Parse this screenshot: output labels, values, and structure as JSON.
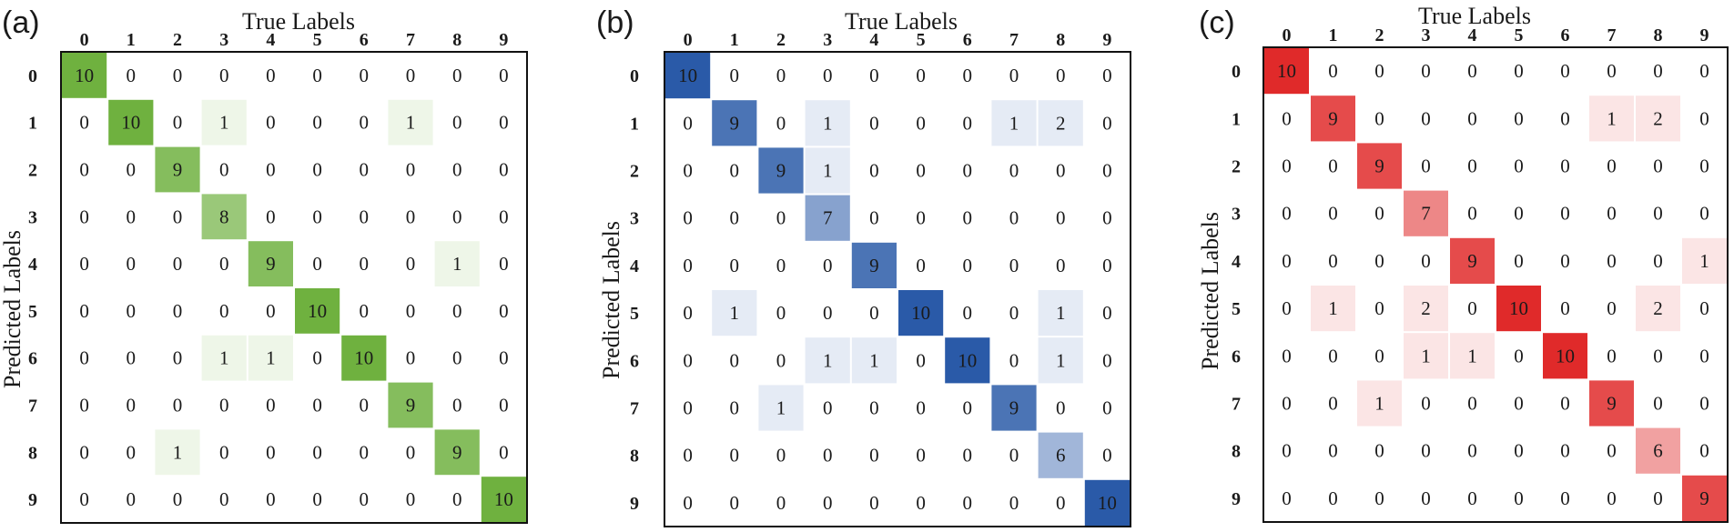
{
  "chart_data": [
    {
      "type": "heatmap",
      "panel_label": "(a)",
      "xlabel": "True Labels",
      "ylabel": "Predicted Labels",
      "x_categories": [
        "0",
        "1",
        "2",
        "3",
        "4",
        "5",
        "6",
        "7",
        "8",
        "9"
      ],
      "y_categories": [
        "0",
        "1",
        "2",
        "3",
        "4",
        "5",
        "6",
        "7",
        "8",
        "9"
      ],
      "color": "#6fb13f",
      "values": [
        [
          10,
          0,
          0,
          0,
          0,
          0,
          0,
          0,
          0,
          0
        ],
        [
          0,
          10,
          0,
          1,
          0,
          0,
          0,
          1,
          0,
          0
        ],
        [
          0,
          0,
          9,
          0,
          0,
          0,
          0,
          0,
          0,
          0
        ],
        [
          0,
          0,
          0,
          8,
          0,
          0,
          0,
          0,
          0,
          0
        ],
        [
          0,
          0,
          0,
          0,
          9,
          0,
          0,
          0,
          1,
          0
        ],
        [
          0,
          0,
          0,
          0,
          0,
          10,
          0,
          0,
          0,
          0
        ],
        [
          0,
          0,
          0,
          1,
          1,
          0,
          10,
          0,
          0,
          0
        ],
        [
          0,
          0,
          0,
          0,
          0,
          0,
          0,
          9,
          0,
          0
        ],
        [
          0,
          0,
          1,
          0,
          0,
          0,
          0,
          0,
          9,
          0
        ],
        [
          0,
          0,
          0,
          0,
          0,
          0,
          0,
          0,
          0,
          10
        ]
      ]
    },
    {
      "type": "heatmap",
      "panel_label": "(b)",
      "xlabel": "True Labels",
      "ylabel": "Predicted Labels",
      "x_categories": [
        "0",
        "1",
        "2",
        "3",
        "4",
        "5",
        "6",
        "7",
        "8",
        "9"
      ],
      "y_categories": [
        "0",
        "1",
        "2",
        "3",
        "4",
        "5",
        "6",
        "7",
        "8",
        "9"
      ],
      "color": "#2a5aa8",
      "values": [
        [
          10,
          0,
          0,
          0,
          0,
          0,
          0,
          0,
          0,
          0
        ],
        [
          0,
          9,
          0,
          1,
          0,
          0,
          0,
          1,
          2,
          0
        ],
        [
          0,
          0,
          9,
          1,
          0,
          0,
          0,
          0,
          0,
          0
        ],
        [
          0,
          0,
          0,
          7,
          0,
          0,
          0,
          0,
          0,
          0
        ],
        [
          0,
          0,
          0,
          0,
          9,
          0,
          0,
          0,
          0,
          0
        ],
        [
          0,
          1,
          0,
          0,
          0,
          10,
          0,
          0,
          1,
          0
        ],
        [
          0,
          0,
          0,
          1,
          1,
          0,
          10,
          0,
          1,
          0
        ],
        [
          0,
          0,
          1,
          0,
          0,
          0,
          0,
          9,
          0,
          0
        ],
        [
          0,
          0,
          0,
          0,
          0,
          0,
          0,
          0,
          6,
          0
        ],
        [
          0,
          0,
          0,
          0,
          0,
          0,
          0,
          0,
          0,
          10
        ]
      ]
    },
    {
      "type": "heatmap",
      "panel_label": "(c)",
      "xlabel": "True Labels",
      "ylabel": "Predicted Labels",
      "x_categories": [
        "0",
        "1",
        "2",
        "3",
        "4",
        "5",
        "6",
        "7",
        "8",
        "9"
      ],
      "y_categories": [
        "0",
        "1",
        "2",
        "3",
        "4",
        "5",
        "6",
        "7",
        "8",
        "9"
      ],
      "color": "#e02a2a",
      "values": [
        [
          10,
          0,
          0,
          0,
          0,
          0,
          0,
          0,
          0,
          0
        ],
        [
          0,
          9,
          0,
          0,
          0,
          0,
          0,
          1,
          2,
          0
        ],
        [
          0,
          0,
          9,
          0,
          0,
          0,
          0,
          0,
          0,
          0
        ],
        [
          0,
          0,
          0,
          7,
          0,
          0,
          0,
          0,
          0,
          0
        ],
        [
          0,
          0,
          0,
          0,
          9,
          0,
          0,
          0,
          0,
          1
        ],
        [
          0,
          1,
          0,
          2,
          0,
          10,
          0,
          0,
          2,
          0
        ],
        [
          0,
          0,
          0,
          1,
          1,
          0,
          10,
          0,
          0,
          0
        ],
        [
          0,
          0,
          1,
          0,
          0,
          0,
          0,
          9,
          0,
          0
        ],
        [
          0,
          0,
          0,
          0,
          0,
          0,
          0,
          0,
          6,
          0
        ],
        [
          0,
          0,
          0,
          0,
          0,
          0,
          0,
          0,
          0,
          9
        ]
      ]
    }
  ]
}
